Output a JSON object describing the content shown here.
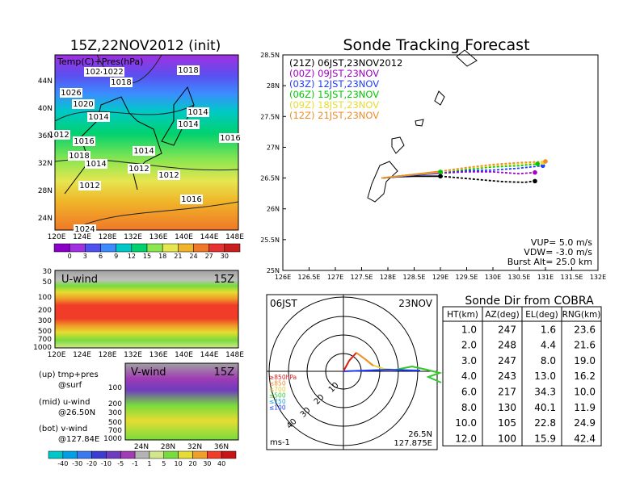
{
  "header": {
    "left_title": "15Z,22NOV2012 (init)",
    "right_title": "Sonde Tracking Forecast"
  },
  "map_panel": {
    "label": "Temp(C)+Pres(hPa)",
    "lon_ticks": [
      "120E",
      "124E",
      "128E",
      "132E",
      "136E",
      "140E",
      "144E",
      "148E"
    ],
    "lat_ticks": [
      "44N",
      "40N",
      "36N",
      "32N",
      "28N",
      "24N"
    ],
    "pressure_labels": [
      "1024",
      "1022",
      "1018",
      "1026",
      "1020",
      "1014",
      "1016",
      "1018",
      "1014",
      "1012",
      "1014",
      "1014",
      "1016",
      "1014",
      "1012",
      "1012",
      "1016",
      "1018",
      "1012",
      "1024"
    ],
    "colorbar_ticks": [
      "0",
      "3",
      "6",
      "9",
      "12",
      "15",
      "18",
      "21",
      "24",
      "27",
      "30"
    ],
    "colorbar_colors": [
      "#8b00c8",
      "#a030e0",
      "#5050f0",
      "#3c8cff",
      "#00c8c8",
      "#00d26e",
      "#8ce650",
      "#e6e650",
      "#f0b428",
      "#f07828",
      "#e63232",
      "#c81e1e"
    ]
  },
  "uwind_panel": {
    "label": "U-wind",
    "time": "15Z",
    "y_ticks": [
      "30",
      "50",
      "100",
      "200",
      "300",
      "500",
      "700",
      "1000"
    ],
    "x_ticks": [
      "120E",
      "124E",
      "128E",
      "132E",
      "136E",
      "140E",
      "144E",
      "148E"
    ]
  },
  "vwind_panel": {
    "label": "V-wind",
    "time": "15Z",
    "y_ticks": [
      "100",
      "200",
      "300",
      "500",
      "700",
      "1000"
    ],
    "x_ticks": [
      "24N",
      "28N",
      "32N",
      "36N"
    ]
  },
  "legend_notes": {
    "line1a": "(up) tmp+pres",
    "line1b": "@surf",
    "line2a": "(mid) u-wind",
    "line2b": "@26.50N",
    "line3a": "(bot) v-wind",
    "line3b": "@127.84E"
  },
  "wind_colorbar": {
    "ticks": [
      "-40",
      "-30",
      "-20",
      "-10",
      "-5",
      "-1",
      "1",
      "5",
      "10",
      "20",
      "30",
      "40"
    ],
    "colors": [
      "#00c8c8",
      "#00a0e6",
      "#3c78f0",
      "#3c3cd2",
      "#6e3cbe",
      "#a03cb4",
      "#b4b4b4",
      "#d2e68c",
      "#78dc3c",
      "#e6dc32",
      "#f0a028",
      "#f03c28",
      "#c81414"
    ]
  },
  "track_panel": {
    "runs": [
      {
        "label": "(21Z)  06JST,23NOV2012",
        "color": "#000000"
      },
      {
        "label": "(00Z)  09JST,23NOV",
        "color": "#a000c8"
      },
      {
        "label": "(03Z)  12JST,23NOV",
        "color": "#1e3cff"
      },
      {
        "label": "(06Z)  15JST,23NOV",
        "color": "#00c800"
      },
      {
        "label": "(09Z)  18JST,23NOV",
        "color": "#e6dc32"
      },
      {
        "label": "(12Z)  21JST,23NOV",
        "color": "#f08c28"
      }
    ],
    "vup": "VUP=  5.0  m/s",
    "vdw": "VDW= -3.0  m/s",
    "burst": "Burst Alt=  25.0  km"
  },
  "polar_panel": {
    "time": "06JST",
    "date": "23NOV",
    "unit": "ms-1",
    "ring_labels": [
      "10",
      "20",
      "30",
      "40"
    ],
    "loc_lat": "26.5N",
    "loc_lon": "127.875E",
    "legend": [
      {
        "label": "≥850hPa",
        "color": "#dc1e1e"
      },
      {
        "label": "≤850",
        "color": "#f08c28"
      },
      {
        "label": "≤700",
        "color": "#e6c832"
      },
      {
        "label": "≤500",
        "color": "#32c832"
      },
      {
        "label": "≤250",
        "color": "#1ea0dc"
      },
      {
        "label": "≤100",
        "color": "#1e3cff"
      }
    ]
  },
  "table": {
    "title": "Sonde Dir from COBRA",
    "headers": [
      "HT(km)",
      "AZ(deg)",
      "EL(deg)",
      "RNG(km)"
    ],
    "rows": [
      [
        "1.0",
        "247",
        "1.6",
        "23.6"
      ],
      [
        "2.0",
        "248",
        "4.4",
        "21.6"
      ],
      [
        "3.0",
        "247",
        "8.0",
        "19.0"
      ],
      [
        "4.0",
        "243",
        "13.0",
        "16.2"
      ],
      [
        "6.0",
        "217",
        "34.3",
        "10.0"
      ],
      [
        "8.0",
        "130",
        "40.1",
        "11.9"
      ],
      [
        "10.0",
        "105",
        "22.8",
        "24.9"
      ],
      [
        "12.0",
        "100",
        "15.9",
        "42.4"
      ]
    ]
  },
  "chart_data": [
    {
      "type": "line",
      "title": "Sonde Tracking Forecast",
      "xlim": [
        126,
        132
      ],
      "ylim": [
        25,
        28.5
      ],
      "x_ticks": [
        "126E",
        "126.5E",
        "127E",
        "127.5E",
        "128E",
        "128.5E",
        "129E",
        "129.5E",
        "130E",
        "130.5E",
        "131E",
        "131.5E",
        "132E"
      ],
      "y_ticks": [
        "25N",
        "25.5N",
        "26N",
        "26.5N",
        "27N",
        "27.5N",
        "28N",
        "28.5N"
      ],
      "series": [
        {
          "name": "(21Z)  06JST,23NOV2012",
          "color": "#000000",
          "dash": false,
          "x": [
            127.88,
            128.2,
            128.5,
            128.8,
            129.0
          ],
          "y": [
            26.5,
            26.52,
            26.53,
            26.53,
            26.53
          ]
        },
        {
          "name": "(21Z)  06JST,23NOV2012",
          "color": "#000000",
          "dash": true,
          "x": [
            129.0,
            129.4,
            129.8,
            130.2,
            130.6,
            130.8
          ],
          "y": [
            26.53,
            26.5,
            26.47,
            26.44,
            26.43,
            26.45
          ]
        },
        {
          "name": "(00Z)  09JST,23NOV",
          "color": "#a000c8",
          "dash": false,
          "x": [
            127.88,
            128.3,
            128.7,
            129.0
          ],
          "y": [
            26.5,
            26.54,
            26.56,
            26.58
          ]
        },
        {
          "name": "(00Z)  09JST,23NOV",
          "color": "#a000c8",
          "dash": true,
          "x": [
            129.0,
            129.5,
            130.0,
            130.5,
            130.8
          ],
          "y": [
            26.58,
            26.6,
            26.6,
            26.57,
            26.59
          ]
        },
        {
          "name": "(03Z)  12JST,23NOV",
          "color": "#1e3cff",
          "dash": false,
          "x": [
            127.88,
            128.4,
            128.8,
            129.0
          ],
          "y": [
            26.5,
            26.54,
            26.57,
            26.6
          ]
        },
        {
          "name": "(03Z)  12JST,23NOV",
          "color": "#1e3cff",
          "dash": true,
          "x": [
            129.0,
            129.5,
            130.0,
            130.5,
            130.95
          ],
          "y": [
            26.6,
            26.62,
            26.63,
            26.66,
            26.7
          ]
        },
        {
          "name": "(06Z)  15JST,23NOV",
          "color": "#00c800",
          "dash": false,
          "x": [
            127.88,
            128.4,
            128.8,
            129.0
          ],
          "y": [
            26.5,
            26.55,
            26.58,
            26.6
          ]
        },
        {
          "name": "(06Z)  15JST,23NOV",
          "color": "#00c800",
          "dash": true,
          "x": [
            129.0,
            129.5,
            130.0,
            130.5,
            130.85
          ],
          "y": [
            26.6,
            26.64,
            26.68,
            26.7,
            26.73
          ]
        },
        {
          "name": "(09Z)  18JST,23NOV",
          "color": "#e6dc32",
          "dash": false,
          "x": [
            127.88,
            128.4,
            128.8,
            129.0
          ],
          "y": [
            26.5,
            26.55,
            26.58,
            26.6
          ]
        },
        {
          "name": "(09Z)  18JST,23NOV",
          "color": "#e6dc32",
          "dash": true,
          "x": [
            129.0,
            129.5,
            130.0,
            130.5,
            130.95
          ],
          "y": [
            26.6,
            26.66,
            26.7,
            26.73,
            26.75
          ]
        },
        {
          "name": "(12Z)  21JST,23NOV",
          "color": "#f08c28",
          "dash": false,
          "x": [
            127.88,
            128.4,
            128.8,
            129.0
          ],
          "y": [
            26.5,
            26.55,
            26.59,
            26.61
          ]
        },
        {
          "name": "(12Z)  21JST,23NOV",
          "color": "#f08c28",
          "dash": true,
          "x": [
            129.0,
            129.5,
            130.0,
            130.5,
            131.0
          ],
          "y": [
            26.61,
            26.67,
            26.72,
            26.75,
            26.77
          ]
        }
      ],
      "end_points": [
        {
          "color": "#000000",
          "x": 130.8,
          "y": 26.45
        },
        {
          "color": "#a000c8",
          "x": 130.8,
          "y": 26.59
        },
        {
          "color": "#1e3cff",
          "x": 130.95,
          "y": 26.7
        },
        {
          "color": "#00c800",
          "x": 130.85,
          "y": 26.73
        },
        {
          "color": "#e6dc32",
          "x": 130.95,
          "y": 26.75
        },
        {
          "color": "#f08c28",
          "x": 131.0,
          "y": 26.77
        }
      ],
      "mid_points": [
        {
          "color": "#000000",
          "x": 129.0,
          "y": 26.53
        },
        {
          "color": "#00c800",
          "x": 129.0,
          "y": 26.6
        }
      ]
    },
    {
      "type": "table",
      "title": "Sonde Dir from COBRA",
      "columns": [
        "HT(km)",
        "AZ(deg)",
        "EL(deg)",
        "RNG(km)"
      ],
      "rows": [
        [
          1.0,
          247,
          1.6,
          23.6
        ],
        [
          2.0,
          248,
          4.4,
          21.6
        ],
        [
          3.0,
          247,
          8.0,
          19.0
        ],
        [
          4.0,
          243,
          13.0,
          16.2
        ],
        [
          6.0,
          217,
          34.3,
          10.0
        ],
        [
          8.0,
          130,
          40.1,
          11.9
        ],
        [
          10.0,
          105,
          22.8,
          24.9
        ],
        [
          12.0,
          100,
          15.9,
          42.4
        ]
      ]
    }
  ]
}
